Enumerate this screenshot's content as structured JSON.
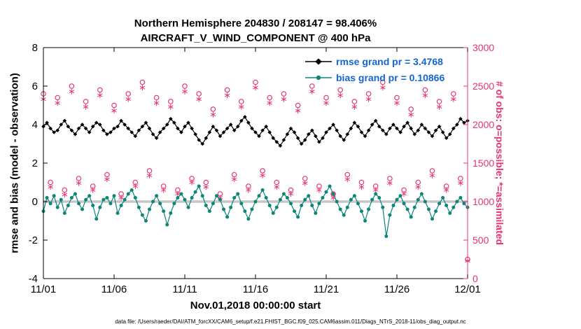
{
  "figure": {
    "title_line1": "Northern Hemisphere 204830 / 208147 = 98.406%",
    "title_line2": "AIRCRAFT_V_WIND_COMPONENT @ 400 hPa",
    "xlabel": "Nov.01,2018 00:00:00 start",
    "ylabel_left": "rmse and bias (model - observation)",
    "ylabel_right": "# of obs: o=possible; *=assimilated",
    "caption": "data file: /Users/raeder/DAI/ATM_forcXX/CAM6_setup/f.e21.FHIST_BGC.f09_025.CAM6assim.011/Diags_NTrS_2018-11/obs_diag_output.nc",
    "legend": [
      {
        "label": "rmse grand pr = 3.4768",
        "marker": "diamond",
        "series": "rmse"
      },
      {
        "label": "bias grand pr = 0.10866",
        "marker": "circle",
        "series": "bias"
      }
    ]
  },
  "colors": {
    "rmse": "#000000",
    "bias": "#0e8579",
    "obs": "#e8336f",
    "legend_text": "#1565d2",
    "zero_line": "#c6c6c6",
    "axis": "#000000"
  },
  "chart_data": {
    "type": "line",
    "title": "Northern Hemisphere 204830 / 208147 = 98.406% | AIRCRAFT_V_WIND_COMPONENT @ 400 hPa",
    "summary": {
      "assimilated": 204830,
      "possible": 208147,
      "percent": 98.406,
      "rmse_grand_pr": 3.4768,
      "bias_grand_pr": 0.10866
    },
    "x_axis": {
      "range": [
        0,
        30
      ],
      "ticks": [
        0,
        5,
        10,
        15,
        20,
        25,
        30
      ],
      "tick_labels": [
        "11/01",
        "11/06",
        "11/11",
        "11/16",
        "11/21",
        "11/26",
        "12/01"
      ],
      "label": "Nov.01,2018 00:00:00 start"
    },
    "y_left": {
      "range": [
        -4,
        8
      ],
      "ticks": [
        -4,
        -2,
        0,
        2,
        4,
        6,
        8
      ],
      "label": "rmse and bias (model - observation)"
    },
    "y_right": {
      "range": [
        0,
        3000
      ],
      "ticks": [
        0,
        500,
        1000,
        1500,
        2000,
        2500,
        3000
      ],
      "label": "# of obs: o=possible; *=assimilated"
    },
    "zero_line": 0,
    "grid": false,
    "legend_position": "top-right-inside",
    "series": {
      "rmse": {
        "x_start": 0,
        "x_step": 0.25,
        "values": [
          3.9,
          4.1,
          3.8,
          3.6,
          3.7,
          4.0,
          4.2,
          3.9,
          3.7,
          3.5,
          3.8,
          4.0,
          3.8,
          3.6,
          3.9,
          4.1,
          4.0,
          3.7,
          3.5,
          3.6,
          3.8,
          3.9,
          4.2,
          4.0,
          3.8,
          3.6,
          3.4,
          3.7,
          3.9,
          4.1,
          3.8,
          3.5,
          3.3,
          3.6,
          3.8,
          4.0,
          4.3,
          4.1,
          3.8,
          3.6,
          3.9,
          4.1,
          3.8,
          3.5,
          3.2,
          3.0,
          3.3,
          3.6,
          3.9,
          3.7,
          3.4,
          3.6,
          3.8,
          4.0,
          3.7,
          3.9,
          4.2,
          4.4,
          4.1,
          3.8,
          3.6,
          3.4,
          3.7,
          3.9,
          3.6,
          3.3,
          3.1,
          2.9,
          3.2,
          3.5,
          3.8,
          3.6,
          3.3,
          3.0,
          3.2,
          3.5,
          3.7,
          3.4,
          3.1,
          3.3,
          3.6,
          3.8,
          4.0,
          3.7,
          3.4,
          3.2,
          3.5,
          3.8,
          4.1,
          3.9,
          3.6,
          3.4,
          3.7,
          4.0,
          4.2,
          3.9,
          3.7,
          3.5,
          3.8,
          4.0,
          3.8,
          3.6,
          3.9,
          4.1,
          3.8,
          3.5,
          3.7,
          4.0,
          3.8,
          3.6,
          3.4,
          3.7,
          3.9,
          3.6,
          3.3,
          3.5,
          3.8,
          4.0,
          4.3,
          4.1,
          4.2
        ]
      },
      "bias": {
        "x_start": 0,
        "x_step": 0.25,
        "values": [
          -0.5,
          0.2,
          -0.1,
          0.3,
          -0.3,
          0.1,
          -0.6,
          -0.2,
          0.2,
          0.4,
          -0.1,
          -0.4,
          0.1,
          0.3,
          -0.2,
          -0.9,
          -0.3,
          0.1,
          0.2,
          -0.1,
          0.3,
          -0.6,
          -0.2,
          0.1,
          0.4,
          0.6,
          0.2,
          -0.3,
          -0.7,
          -1.0,
          -0.4,
          0.0,
          0.3,
          -0.1,
          -0.5,
          -1.2,
          -0.6,
          -0.1,
          0.2,
          0.4,
          0.1,
          -0.3,
          0.2,
          0.5,
          0.8,
          0.3,
          -0.2,
          -0.5,
          -0.1,
          0.3,
          0.1,
          -0.4,
          -0.8,
          -0.3,
          0.2,
          0.4,
          -0.1,
          -0.5,
          -0.9,
          -0.4,
          0.0,
          0.3,
          0.6,
          0.2,
          -0.2,
          -0.6,
          -0.3,
          0.1,
          0.4,
          0.2,
          -0.1,
          -0.5,
          -0.8,
          -0.2,
          0.1,
          0.3,
          -0.2,
          -0.6,
          -0.1,
          0.2,
          0.5,
          0.8,
          0.4,
          0.0,
          -0.4,
          -0.7,
          -0.3,
          0.1,
          0.3,
          -0.1,
          -0.5,
          -1.0,
          -0.4,
          0.1,
          0.4,
          0.2,
          -0.3,
          -1.8,
          -0.7,
          -0.2,
          0.1,
          0.3,
          -0.1,
          -0.4,
          -0.8,
          -0.3,
          0.1,
          0.4,
          0.0,
          -0.4,
          -0.9,
          -0.5,
          -0.1,
          0.2,
          -0.2,
          -0.6,
          -0.3,
          0.0,
          0.2,
          -0.1,
          -0.3
        ]
      },
      "possible": {
        "x_start": 0,
        "x_step": 0.5,
        "axis": "right",
        "values": [
          2400,
          1250,
          2350,
          1150,
          2500,
          1300,
          2300,
          1200,
          2450,
          1350,
          2250,
          1100,
          2400,
          1250,
          2550,
          1400,
          2350,
          1200,
          2300,
          1150,
          2500,
          1300,
          2400,
          1250,
          2200,
          1100,
          2450,
          1350,
          2300,
          1200,
          2550,
          1400,
          2350,
          1250,
          2400,
          1150,
          2250,
          1300,
          2500,
          1200,
          2350,
          1100,
          2450,
          1350,
          2300,
          1250,
          2400,
          1200,
          2550,
          1300,
          2350,
          1150,
          2200,
          1250,
          2450,
          1400,
          2300,
          1200,
          2400,
          1300,
          250
        ]
      },
      "assimilated": {
        "x_start": 0,
        "x_step": 0.5,
        "axis": "right",
        "values": [
          2330,
          1190,
          2280,
          1090,
          2430,
          1240,
          2230,
          1150,
          2380,
          1290,
          2180,
          1050,
          2330,
          1200,
          2480,
          1340,
          2280,
          1150,
          2230,
          1100,
          2430,
          1250,
          2330,
          1190,
          2130,
          1050,
          2380,
          1290,
          2230,
          1150,
          2480,
          1340,
          2280,
          1190,
          2330,
          1100,
          2180,
          1240,
          2430,
          1150,
          2280,
          1050,
          2380,
          1290,
          2230,
          1190,
          2330,
          1150,
          2480,
          1240,
          2280,
          1100,
          2130,
          1190,
          2380,
          1340,
          2230,
          1150,
          2330,
          1240,
          230
        ]
      }
    }
  }
}
